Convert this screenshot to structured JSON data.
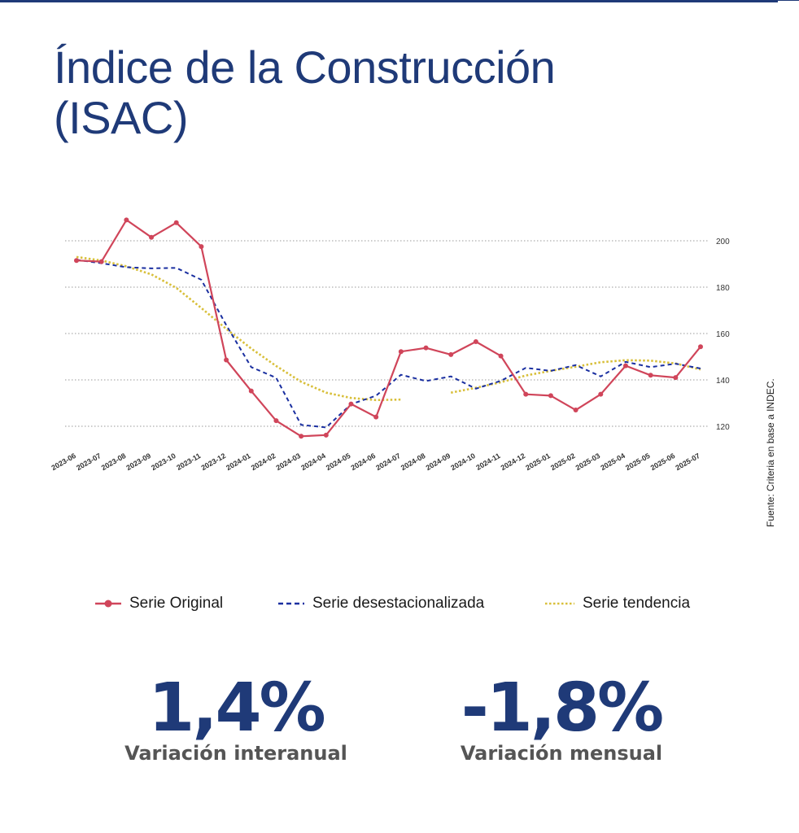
{
  "title_line1": "Índice de la Construcción",
  "title_line2": "(ISAC)",
  "source_note": "Fuente: Criteria en base a INDEC.",
  "colors": {
    "brand": "#1f3a78",
    "original": "#d0455a",
    "desestacionalizada": "#1a2fa0",
    "tendencia": "#d8bf3a",
    "grid": "#9a9a9a",
    "kpi_label": "#555555"
  },
  "legend": {
    "original": "Serie Original",
    "desestacionalizada": "Serie desestacionalizada",
    "tendencia": "Serie tendencia"
  },
  "kpis": {
    "interanual_value": "1,4%",
    "interanual_label": "Variación interanual",
    "mensual_value": "-1,8%",
    "mensual_label": "Variación mensual"
  },
  "chart_data": {
    "type": "line",
    "title": "",
    "xlabel": "",
    "ylabel": "",
    "ylim": [
      110,
      205
    ],
    "yticks": [
      120,
      140,
      160,
      180,
      200
    ],
    "y_axis_position": "right",
    "grid": "horizontal-dotted",
    "legend_position": "bottom",
    "categories": [
      "2023-06",
      "2023-07",
      "2023-08",
      "2023-09",
      "2023-10",
      "2023-11",
      "2023-12",
      "2024-01",
      "2024-02",
      "2024-03",
      "2024-04",
      "2024-05",
      "2024-06",
      "2024-07",
      "2024-08",
      "2024-09",
      "2024-10",
      "2024-11",
      "2024-12",
      "2025-01",
      "2025-02",
      "2025-03",
      "2025-04",
      "2025-05",
      "2025-06",
      "2025-07"
    ],
    "series": [
      {
        "name": "Serie Original",
        "style": "solid-markers",
        "values": [
          191.5,
          191.0,
          209.0,
          201.5,
          207.8,
          197.5,
          148.6,
          135.2,
          122.4,
          115.7,
          116.2,
          129.6,
          124.0,
          152.2,
          153.8,
          150.9,
          156.5,
          150.3,
          133.8,
          133.2,
          127.0,
          133.8,
          146.1,
          142.0,
          141.0,
          154.3
        ]
      },
      {
        "name": "Serie desestacionalizada",
        "style": "dashed",
        "values": [
          191.8,
          190.3,
          188.6,
          188.1,
          188.3,
          183.2,
          163.6,
          145.5,
          140.9,
          120.6,
          119.5,
          129.5,
          133.2,
          142.2,
          139.5,
          141.5,
          136.2,
          139.6,
          145.2,
          143.9,
          146.4,
          141.5,
          147.8,
          145.5,
          147.0,
          144.9
        ]
      },
      {
        "name": "Serie tendencia",
        "style": "dotted",
        "values": [
          193.0,
          191.5,
          189.0,
          185.5,
          179.7,
          171.0,
          162.0,
          153.5,
          146.0,
          139.2,
          134.5,
          132.2,
          131.3,
          131.5,
          null,
          134.5,
          136.6,
          139.0,
          141.9,
          143.9,
          145.7,
          147.6,
          148.5,
          148.3,
          147.1,
          144.5
        ]
      }
    ]
  }
}
